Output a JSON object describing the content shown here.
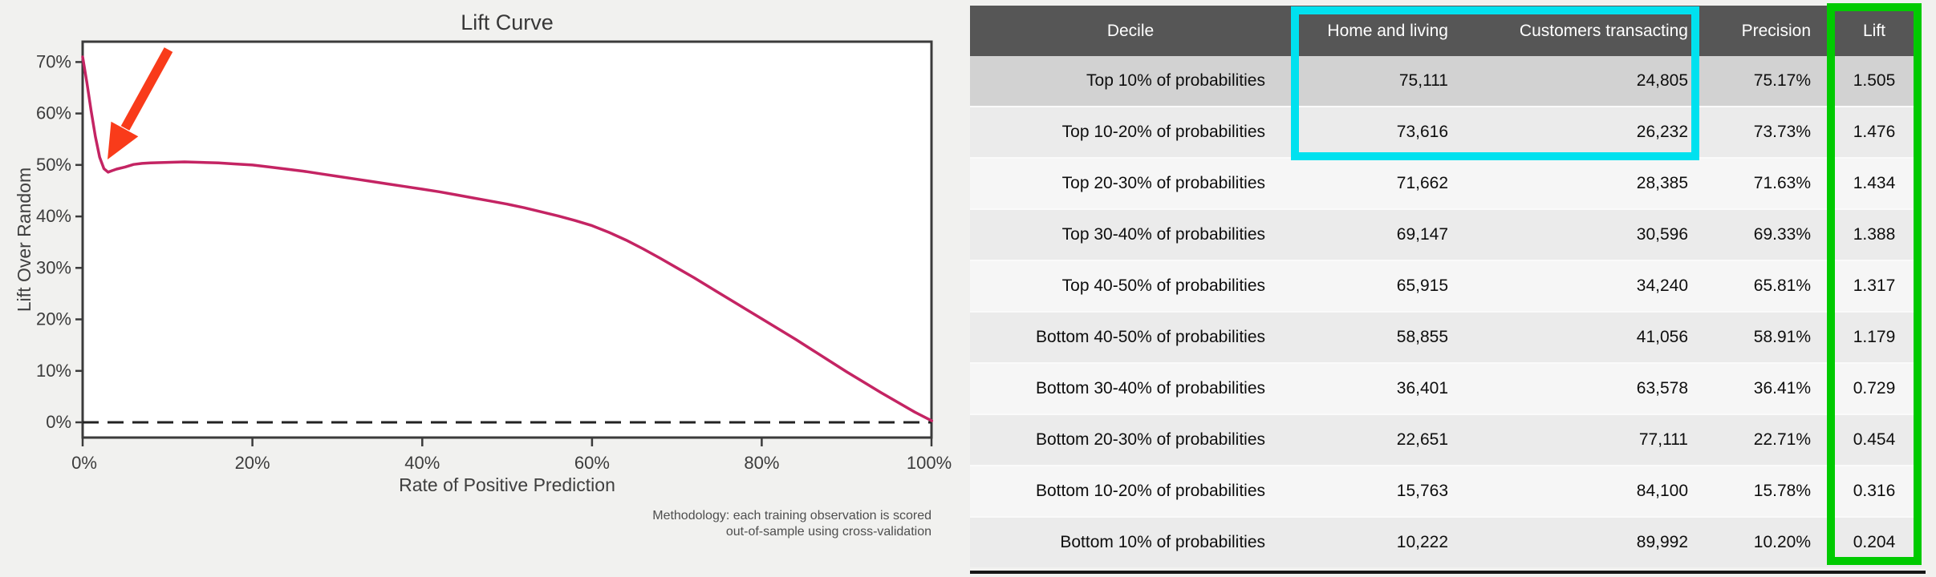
{
  "chart": {
    "title": "Lift Curve",
    "xlabel": "Rate of Positive Prediction",
    "ylabel": "Lift Over Random",
    "note_line1": "Methodology: each training observation is scored",
    "note_line2": "out-of-sample using cross-validation"
  },
  "chart_data": {
    "type": "line",
    "title": "Lift Curve",
    "xlabel": "Rate of Positive Prediction",
    "ylabel": "Lift Over Random",
    "x_tick_labels": [
      "0%",
      "20%",
      "40%",
      "60%",
      "80%",
      "100%"
    ],
    "y_tick_labels": [
      "0%",
      "10%",
      "20%",
      "30%",
      "40%",
      "50%",
      "60%",
      "70%"
    ],
    "x_range_pct": [
      0,
      100
    ],
    "y_range_pct": [
      -4,
      74
    ],
    "grid": false,
    "legend": "none",
    "baseline_y": 0,
    "baseline_style": "black dashed horizontal line at 0%",
    "line_color": "#c42463",
    "annotations": [
      "large red arrow pointing at the early dip in the curve near x=2-3%, y=49%"
    ],
    "series": [
      {
        "name": "lift over random",
        "points": [
          [
            0,
            71
          ],
          [
            0.5,
            66
          ],
          [
            1,
            60.5
          ],
          [
            1.5,
            55.5
          ],
          [
            2,
            51.5
          ],
          [
            2.5,
            49.3
          ],
          [
            3,
            48.6
          ],
          [
            3.5,
            48.9
          ],
          [
            4,
            49.2
          ],
          [
            5,
            49.6
          ],
          [
            6,
            50.1
          ],
          [
            7,
            50.3
          ],
          [
            8,
            50.4
          ],
          [
            10,
            50.5
          ],
          [
            12,
            50.6
          ],
          [
            14,
            50.5
          ],
          [
            16,
            50.4
          ],
          [
            18,
            50.2
          ],
          [
            20,
            50.0
          ],
          [
            22,
            49.6
          ],
          [
            24,
            49.2
          ],
          [
            26,
            48.8
          ],
          [
            28,
            48.3
          ],
          [
            30,
            47.8
          ],
          [
            32,
            47.3
          ],
          [
            34,
            46.8
          ],
          [
            36,
            46.3
          ],
          [
            38,
            45.8
          ],
          [
            40,
            45.3
          ],
          [
            42,
            44.8
          ],
          [
            44,
            44.2
          ],
          [
            46,
            43.6
          ],
          [
            48,
            43.0
          ],
          [
            50,
            42.4
          ],
          [
            52,
            41.7
          ],
          [
            54,
            40.9
          ],
          [
            56,
            40.1
          ],
          [
            58,
            39.2
          ],
          [
            60,
            38.2
          ],
          [
            62,
            36.9
          ],
          [
            64,
            35.4
          ],
          [
            66,
            33.7
          ],
          [
            68,
            31.9
          ],
          [
            70,
            30.0
          ],
          [
            72,
            28.1
          ],
          [
            74,
            26.1
          ],
          [
            76,
            24.1
          ],
          [
            78,
            22.1
          ],
          [
            80,
            20.1
          ],
          [
            82,
            18.1
          ],
          [
            84,
            16.1
          ],
          [
            86,
            14.0
          ],
          [
            88,
            11.9
          ],
          [
            90,
            9.8
          ],
          [
            92,
            7.8
          ],
          [
            94,
            5.8
          ],
          [
            96,
            3.9
          ],
          [
            98,
            2.0
          ],
          [
            100,
            0.3
          ]
        ]
      }
    ]
  },
  "table": {
    "columns": [
      "Decile",
      "Home and living",
      "Customers transacting",
      "Precision",
      "Lift"
    ],
    "rows": [
      [
        "Top 10% of probabilities",
        "75,111",
        "24,805",
        "75.17%",
        "1.505"
      ],
      [
        "Top 10-20% of probabilities",
        "73,616",
        "26,232",
        "73.73%",
        "1.476"
      ],
      [
        "Top 20-30% of probabilities",
        "71,662",
        "28,385",
        "71.63%",
        "1.434"
      ],
      [
        "Top 30-40% of probabilities",
        "69,147",
        "30,596",
        "69.33%",
        "1.388"
      ],
      [
        "Top 40-50% of probabilities",
        "65,915",
        "34,240",
        "65.81%",
        "1.317"
      ],
      [
        "Bottom 40-50% of probabilities",
        "58,855",
        "41,056",
        "58.91%",
        "1.179"
      ],
      [
        "Bottom 30-40% of probabilities",
        "36,401",
        "63,578",
        "36.41%",
        "0.729"
      ],
      [
        "Bottom 20-30% of probabilities",
        "22,651",
        "77,111",
        "22.71%",
        "0.454"
      ],
      [
        "Bottom 10-20% of probabilities",
        "15,763",
        "84,100",
        "15.78%",
        "0.316"
      ],
      [
        "Bottom 10% of probabilities",
        "10,222",
        "89,992",
        "10.20%",
        "0.204"
      ]
    ],
    "highlights": {
      "cyan_box": "surrounds Home and living + Customers transacting columns for header and top two rows",
      "green_box": "surrounds the full Lift column"
    }
  },
  "colors": {
    "page_bg": "#f1f1ef",
    "plot_bg": "#ffffff",
    "spine": "#3b3b3b",
    "curve": "#c42463",
    "arrow": "#f93b1a",
    "baseline": "#222222",
    "header_bg": "#565656",
    "row_highlight": "#d2d2d2",
    "row_even": "#ebebeb",
    "row_odd": "#f6f6f6",
    "highlight_cyan": "#00e1ef",
    "highlight_green": "#00ca00"
  }
}
